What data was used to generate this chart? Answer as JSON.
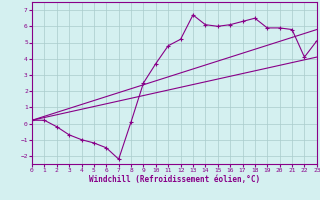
{
  "xlabel": "Windchill (Refroidissement éolien,°C)",
  "background_color": "#d4f0f0",
  "line_color": "#880088",
  "grid_color": "#aacccc",
  "xmin": 0,
  "xmax": 23,
  "ymin": -2.5,
  "ymax": 7.5,
  "xticks": [
    0,
    1,
    2,
    3,
    4,
    5,
    6,
    7,
    8,
    9,
    10,
    11,
    12,
    13,
    14,
    15,
    16,
    17,
    18,
    19,
    20,
    21,
    22,
    23
  ],
  "yticks": [
    -2,
    -1,
    0,
    1,
    2,
    3,
    4,
    5,
    6,
    7
  ],
  "line1_x": [
    0,
    1,
    2,
    3,
    4,
    5,
    6,
    7,
    8,
    9,
    10,
    11,
    12,
    13,
    14,
    15,
    16,
    17,
    18,
    19,
    20,
    21,
    22,
    23
  ],
  "line1_y": [
    0.2,
    0.2,
    -0.2,
    -0.7,
    -1.0,
    -1.2,
    -1.5,
    -2.2,
    0.1,
    2.5,
    3.7,
    4.8,
    5.2,
    6.7,
    6.1,
    6.0,
    6.1,
    6.3,
    6.5,
    5.9,
    5.9,
    5.8,
    4.1,
    5.1
  ],
  "line2_x": [
    0,
    23
  ],
  "line2_y": [
    0.2,
    4.1
  ],
  "line3_x": [
    0,
    23
  ],
  "line3_y": [
    0.2,
    5.8
  ]
}
